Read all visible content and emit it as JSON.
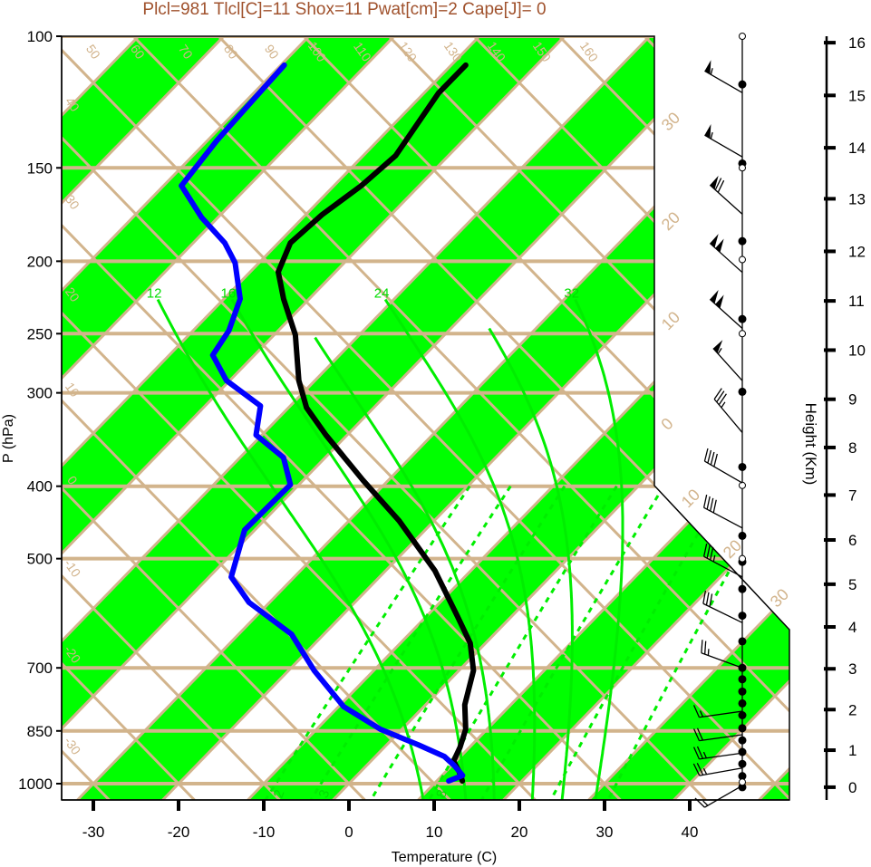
{
  "title": "Plcl=981 Tlcl[C]=11 Shox=11 Pwat[cm]=2 Cape[J]= 0",
  "colors": {
    "title": "#a0522d",
    "band": "#00ff00",
    "grid": "#d2b48c",
    "temperature": "#000000",
    "dewpoint": "#0000ff",
    "moist": "#00ee00"
  },
  "chart_data": {
    "type": "line",
    "subtype": "skew-t",
    "title": "Plcl=981 Tlcl[C]=11 Shox=11 Pwat[cm]=2 Cape[J]= 0",
    "xlabel": "Temperature (C)",
    "ylabel": "P (hPa)",
    "y2label": "Height (Km)",
    "xticks": [
      "-30",
      "-20",
      "-10",
      "0",
      "10",
      "20",
      "30",
      "40"
    ],
    "xtick_values": [
      -30,
      -20,
      -10,
      0,
      10,
      20,
      30,
      40
    ],
    "pressure_ticks": [
      "100",
      "150",
      "200",
      "250",
      "300",
      "400",
      "500",
      "700",
      "850",
      "1000"
    ],
    "pressure_values": [
      100,
      150,
      200,
      250,
      300,
      400,
      500,
      700,
      850,
      1000
    ],
    "ylim": [
      1050,
      100
    ],
    "height_ticks": [
      {
        "label": "0",
        "p": 1011
      },
      {
        "label": "1",
        "p": 902
      },
      {
        "label": "2",
        "p": 796
      },
      {
        "label": "3",
        "p": 702
      },
      {
        "label": "4",
        "p": 617
      },
      {
        "label": "5",
        "p": 541
      },
      {
        "label": "6",
        "p": 472
      },
      {
        "label": "7",
        "p": 411
      },
      {
        "label": "8",
        "p": 355
      },
      {
        "label": "9",
        "p": 306
      },
      {
        "label": "10",
        "p": 263
      },
      {
        "label": "11",
        "p": 226
      },
      {
        "label": "12",
        "p": 194
      },
      {
        "label": "13",
        "p": 165
      },
      {
        "label": "14",
        "p": 141
      },
      {
        "label": "15",
        "p": 120
      },
      {
        "label": "16",
        "p": 102
      }
    ],
    "temperature": {
      "name": "Temperature",
      "p": [
        109.3,
        119.2,
        144.5,
        158.5,
        173.3,
        189,
        206.7,
        224.6,
        251,
        288.8,
        314,
        341.6,
        392.6,
        445,
        519,
        596.8,
        648.7,
        705.6,
        784.4,
        845.9,
        894.4,
        932.5,
        964.3,
        991.7
      ],
      "t": [
        -68.3,
        -68.3,
        -66.2,
        -66.8,
        -68.1,
        -68.6,
        -66.7,
        -63.0,
        -57.5,
        -51.9,
        -47.9,
        -42.5,
        -33.0,
        -24.1,
        -14.2,
        -6.4,
        -1.8,
        1.7,
        4.6,
        7.5,
        8.9,
        9.7,
        11.6,
        13.0
      ]
    },
    "dewpoint": {
      "name": "Dewpoint",
      "p": [
        109.3,
        121.6,
        137.9,
        158.5,
        174.8,
        189,
        201,
        224.6,
        247.7,
        267.1,
        288.8,
        312.3,
        341.6,
        366.2,
        398.1,
        426.9,
        457.7,
        529.1,
        572.3,
        631,
        705.6,
        788.9,
        845.9,
        887.1,
        919.6,
        945.8,
        975,
        991.7
      ],
      "t": [
        -89.6,
        -89.3,
        -88.9,
        -87.9,
        -81.9,
        -76.3,
        -72.8,
        -68.1,
        -65.8,
        -64.9,
        -60.4,
        -53.5,
        -50.7,
        -44.9,
        -41.0,
        -41.1,
        -41.2,
        -37.4,
        -32.4,
        -23.8,
        -17.0,
        -9.4,
        -2.5,
        3.7,
        8.1,
        10.3,
        12.4,
        11.4
      ]
    },
    "moist_adiabats": [
      {
        "label": "12",
        "p_top": 225,
        "t_top": -77.7
      },
      {
        "label": "16",
        "p_top": 225,
        "t_top": -69.0
      },
      {
        "label": "",
        "p_top": 253,
        "t_top": -54.9
      },
      {
        "label": "24",
        "p_top": 225,
        "t_top": -51.0
      },
      {
        "label": "",
        "p_top": 246,
        "t_top": -35.5
      },
      {
        "label": "32",
        "p_top": 225,
        "t_top": -28.7
      }
    ],
    "mixing_ratio_lines": [
      {
        "w": 2,
        "label": "2"
      },
      {
        "w": 3,
        "label": "3"
      },
      {
        "w": 5,
        "label": ""
      },
      {
        "w": 8,
        "label": "8"
      },
      {
        "w": 12,
        "label": ""
      },
      {
        "w": 20,
        "label": ""
      },
      {
        "w": 30,
        "label": ""
      }
    ],
    "dry_adiabat_labels": [
      "50",
      "60",
      "70",
      "80",
      "90",
      "100",
      "110",
      "120",
      "130",
      "140",
      "150",
      "160"
    ],
    "left_edge_labels": [
      "40",
      "30",
      "20",
      "10",
      "0",
      "-10",
      "-20",
      "-30"
    ],
    "right_edge_labels": [
      "30",
      "20",
      "10",
      "0",
      "10",
      "20",
      "30"
    ],
    "winds": [
      {
        "p": 119,
        "dir": 300,
        "kt": 55
      },
      {
        "p": 145,
        "dir": 300,
        "kt": 55
      },
      {
        "p": 173,
        "dir": 312,
        "kt": 70
      },
      {
        "p": 207,
        "dir": 312,
        "kt": 100
      },
      {
        "p": 246,
        "dir": 312,
        "kt": 100
      },
      {
        "p": 289,
        "dir": 318,
        "kt": 55
      },
      {
        "p": 339,
        "dir": 320,
        "kt": 35
      },
      {
        "p": 396,
        "dir": 300,
        "kt": 40
      },
      {
        "p": 455,
        "dir": 298,
        "kt": 40
      },
      {
        "p": 529,
        "dir": 298,
        "kt": 35
      },
      {
        "p": 609,
        "dir": 296,
        "kt": 30
      },
      {
        "p": 700,
        "dir": 290,
        "kt": 25
      },
      {
        "p": 800,
        "dir": 262,
        "kt": 15
      },
      {
        "p": 860,
        "dir": 262,
        "kt": 20
      },
      {
        "p": 910,
        "dir": 262,
        "kt": 25
      },
      {
        "p": 953,
        "dir": 260,
        "kt": 25
      },
      {
        "p": 1006,
        "dir": 240,
        "kt": 15
      }
    ],
    "station_dots_filled": [
      116,
      148,
      188,
      239,
      299,
      377,
      466,
      505,
      549,
      596,
      645,
      700,
      725,
      753,
      781,
      810,
      843,
      875,
      907,
      941,
      977,
      1011
    ],
    "station_dots_open": [
      100,
      150,
      199,
      250,
      399,
      500,
      995
    ]
  }
}
